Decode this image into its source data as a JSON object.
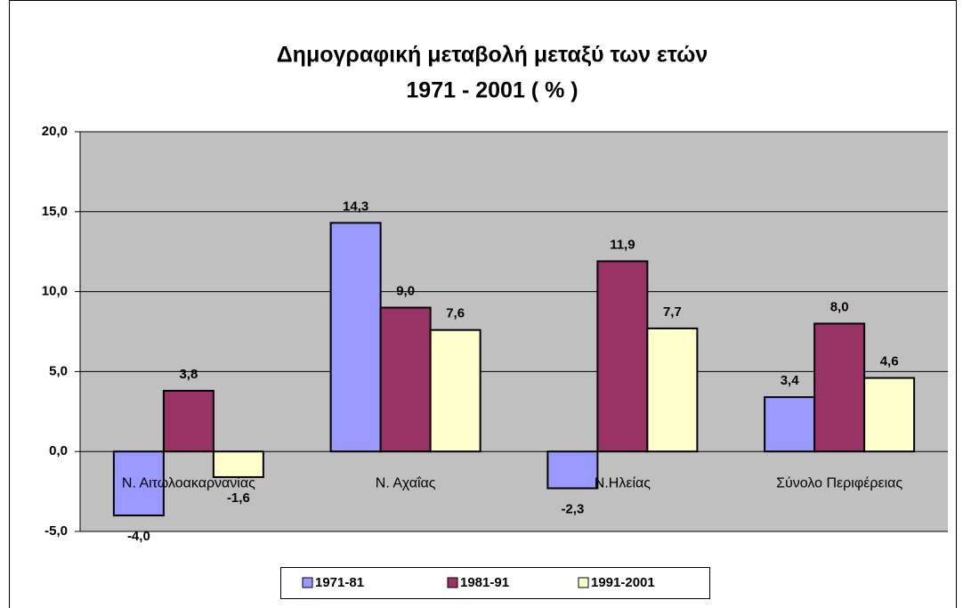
{
  "chart_data": {
    "type": "bar",
    "title": "Δημογραφική μεταβολή  μεταξύ των ετών",
    "subtitle": "1971 - 2001  ( % )",
    "categories": [
      "Ν. Αιτωλοακαρνανίας",
      "Ν. Αχαΐας",
      "Ν.Ηλείας",
      "Σύνολο Περιφέρειας"
    ],
    "series": [
      {
        "name": "1971-81",
        "color": "#9999ff",
        "values": [
          -4.0,
          14.3,
          -2.3,
          3.4
        ],
        "value_labels": [
          "-4,0",
          "14,3",
          "-2,3",
          "3,4"
        ]
      },
      {
        "name": "1981-91",
        "color": "#993366",
        "values": [
          3.8,
          9.0,
          11.9,
          8.0
        ],
        "value_labels": [
          "3,8",
          "9,0",
          "11,9",
          "8,0"
        ]
      },
      {
        "name": "1991-2001",
        "color": "#ffffcc",
        "values": [
          -1.6,
          7.6,
          7.7,
          4.6
        ],
        "value_labels": [
          "-1,6",
          "7,6",
          "7,7",
          "4,6"
        ]
      }
    ],
    "ylim": [
      -5,
      20
    ],
    "yticks": [
      {
        "value": -5,
        "label": "-5,0"
      },
      {
        "value": 0,
        "label": "0,0"
      },
      {
        "value": 5,
        "label": "5,0"
      },
      {
        "value": 10,
        "label": "10,0"
      },
      {
        "value": 15,
        "label": "15,0"
      },
      {
        "value": 20,
        "label": "20,0"
      }
    ],
    "grid": true,
    "legend": "bottom"
  }
}
